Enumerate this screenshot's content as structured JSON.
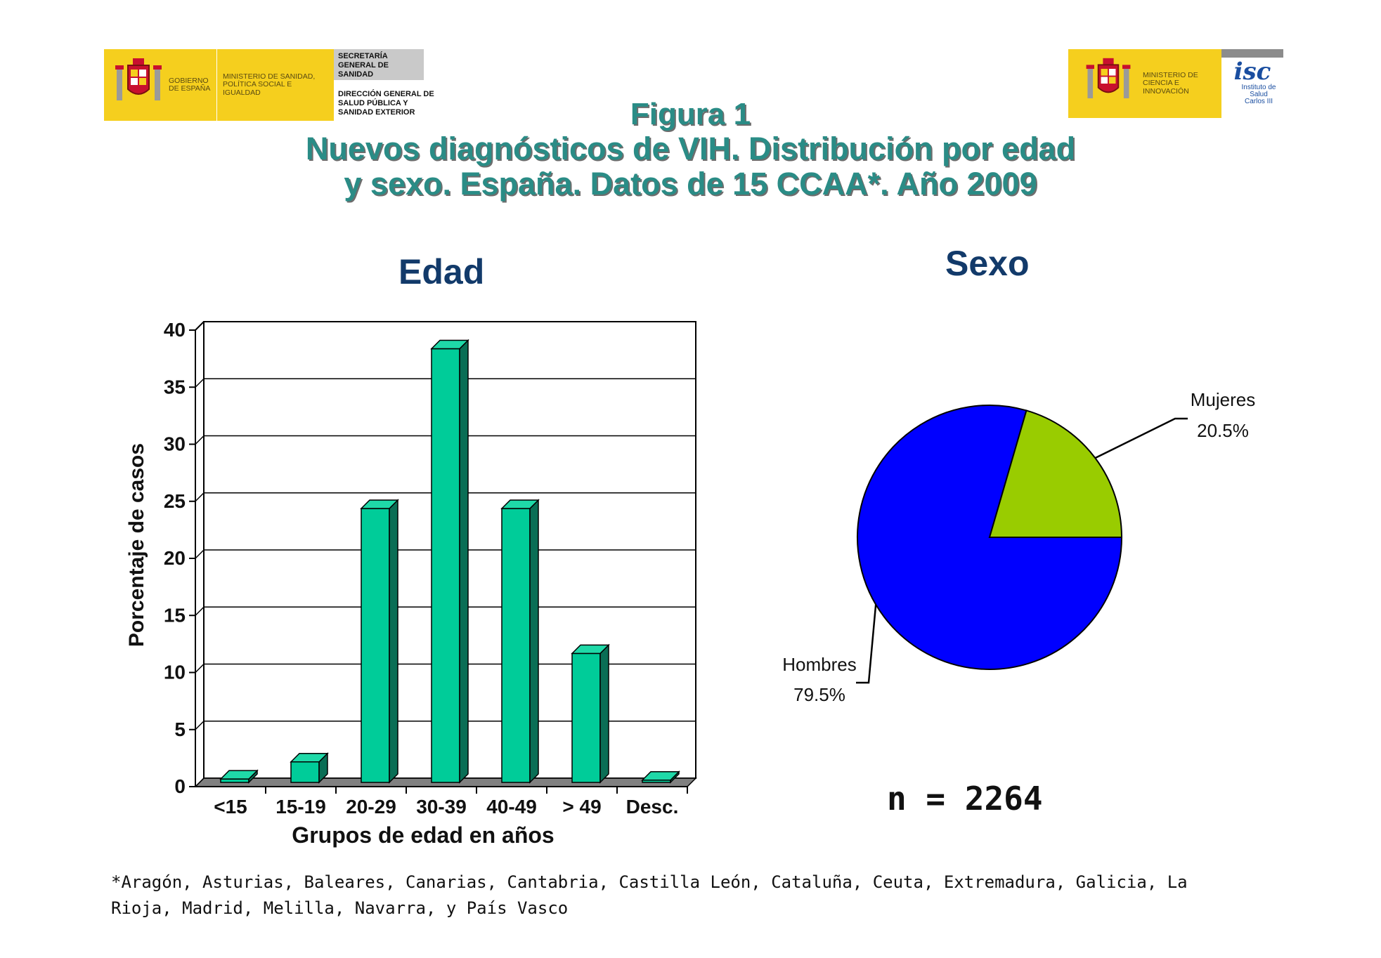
{
  "header": {
    "left_logo": {
      "gobierno": "GOBIERNO DE ESPAÑA",
      "ministerio": "MINISTERIO DE SANIDAD, POLÍTICA SOCIAL E IGUALDAD",
      "secretaria": "SECRETARÍA GENERAL DE SANIDAD",
      "direccion": "DIRECCIÓN GENERAL DE SALUD PÚBLICA Y SANIDAD EXTERIOR"
    },
    "right_logo": {
      "ministerio": "MINISTERIO DE CIENCIA E INNOVACIÓN",
      "isc_mark": "isc",
      "instituto": "Instituto de Salud Carlos III"
    }
  },
  "title": {
    "line1": "Figura 1",
    "line2": "Nuevos diagnósticos de VIH. Distribución por edad",
    "line3": "y sexo. España. Datos de 15 CCAA*. Año 2009"
  },
  "footnote": "*Aragón, Asturias, Baleares, Canarias, Cantabria, Castilla León, Cataluña, Ceuta, Extremadura, Galicia, La Rioja, Madrid,  Melilla, Navarra, y País Vasco",
  "n_label": "n = 2264",
  "colors": {
    "bar_front": "#00cc99",
    "bar_side": "#0a6e55",
    "bar_top": "#1fd9a8",
    "pie_hombres": "#0000ff",
    "pie_mujeres": "#99cc00",
    "title_teal": "#2a8c86",
    "subtitle_navy": "#123a6a"
  },
  "chart_data": [
    {
      "type": "bar",
      "title": "Edad",
      "categories": [
        "<15",
        "15-19",
        "20-29",
        "30-39",
        "40-49",
        "> 49",
        "Desc."
      ],
      "values": [
        0.3,
        1.8,
        24,
        38,
        24,
        11.3,
        0.2
      ],
      "xlabel": "Grupos de edad en años",
      "ylabel": "Porcentaje de casos",
      "ylim": [
        0,
        40
      ],
      "yticks": [
        0,
        5,
        10,
        15,
        20,
        25,
        30,
        35,
        40
      ],
      "grid": true,
      "style": "3d"
    },
    {
      "type": "pie",
      "title": "Sexo",
      "slices": [
        {
          "label": "Hombres",
          "value": 79.5,
          "value_label": "79.5%"
        },
        {
          "label": "Mujeres",
          "value": 20.5,
          "value_label": "20.5%"
        }
      ]
    }
  ]
}
